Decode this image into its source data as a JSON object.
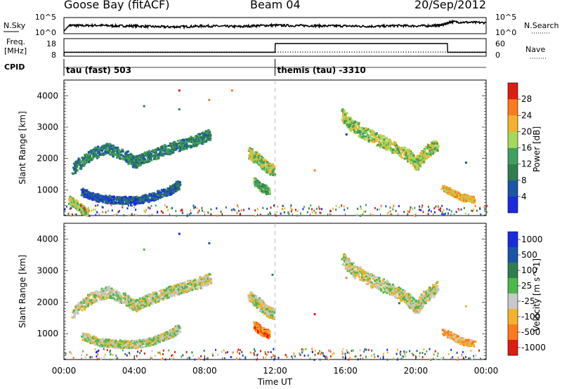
{
  "header": {
    "site": "Goose Bay (fitACF)",
    "beam": "Beam 04",
    "date": "20/Sep/2012"
  },
  "chart_data": [
    {
      "type": "line",
      "panel": "noise",
      "left_label": "N.Sky",
      "left_ticks": [
        "10^5",
        "10^0"
      ],
      "right_label": "N.Search",
      "right_ticks": [
        "10^5",
        "10^0"
      ],
      "series": [
        {
          "name": "N.Sky",
          "style": "solid",
          "x": [
            0,
            0.3,
            1,
            2,
            3,
            4,
            5,
            6,
            7,
            8,
            9,
            10,
            11,
            12,
            13,
            14,
            15,
            16,
            17,
            18,
            19,
            20,
            21,
            21.5,
            22,
            23,
            24
          ],
          "y": [
            0.8,
            2.6,
            2.5,
            2.6,
            2.4,
            2.4,
            2.2,
            2.1,
            2.2,
            2.4,
            2.3,
            2.2,
            2.5,
            2.6,
            2.5,
            2.5,
            2.4,
            2.4,
            2.3,
            2.3,
            2.5,
            2.4,
            2.5,
            2.7,
            3.7,
            3.5,
            3.4
          ]
        },
        {
          "name": "N.Search",
          "style": "dotted",
          "x": [],
          "y": []
        }
      ]
    },
    {
      "type": "line",
      "panel": "frequency",
      "left_label": "Freq. [MHz]",
      "left_ticks": [
        18,
        8
      ],
      "right_label": "Nave",
      "right_ticks": [
        60,
        0
      ],
      "series": [
        {
          "name": "Freq.",
          "style": "solid",
          "x": [
            0,
            0.01,
            12,
            12.01,
            21.8,
            21.81,
            24
          ],
          "y": [
            8,
            10.2,
            10.2,
            15.2,
            15.2,
            10.2,
            10.2
          ]
        },
        {
          "name": "Nave",
          "style": "dotted",
          "x": [
            0,
            24
          ],
          "y": [
            14,
            14
          ]
        }
      ]
    },
    {
      "type": "table",
      "panel": "cpid",
      "label": "CPID",
      "segments": [
        {
          "start": 0,
          "name": "tau (fast) 503"
        },
        {
          "start": 12,
          "name": "themis (tau) -3310"
        }
      ]
    },
    {
      "type": "heatmap",
      "panel": "power",
      "ylabel": "Slant Range [km]",
      "ylim": [
        180,
        4500
      ],
      "yticks": [
        1000,
        2000,
        3000,
        4000
      ],
      "colorbar_label": "Power [dB]",
      "colorbar_ticks": [
        4,
        8,
        12,
        16,
        20,
        24,
        28
      ],
      "colors": [
        "#1a2bde",
        "#1c55a8",
        "#2e7d4f",
        "#3fa05d",
        "#a6d85c",
        "#f4b32a",
        "#ff7a1a",
        "#e01b12"
      ],
      "bands": [
        {
          "x": [
            0.5,
            1.5,
            2.5,
            3.5,
            4.0,
            4.5,
            5.5,
            6.5,
            7.5,
            8.3
          ],
          "y": [
            1700,
            2150,
            2350,
            2100,
            1900,
            2050,
            2250,
            2450,
            2600,
            2800
          ],
          "w": 350,
          "level": 2
        },
        {
          "x": [
            1.0,
            2.0,
            3.0,
            4.0,
            5.0,
            6.0,
            6.5
          ],
          "y": [
            950,
            750,
            700,
            680,
            800,
            1000,
            1200
          ],
          "w": 250,
          "level": 1
        },
        {
          "x": [
            0.3,
            0.8,
            1.3
          ],
          "y": [
            700,
            500,
            300
          ],
          "w": 250,
          "level": 4
        },
        {
          "x": [
            10.5,
            11.0,
            11.5,
            11.9
          ],
          "y": [
            2200,
            2000,
            1750,
            1650
          ],
          "w": 350,
          "level": 4
        },
        {
          "x": [
            10.8,
            11.2,
            11.6
          ],
          "y": [
            1300,
            1100,
            1000
          ],
          "w": 250,
          "level": 3
        },
        {
          "x": [
            15.8,
            16.5,
            17.5,
            18.5,
            19.5,
            20.0,
            20.5,
            21.2
          ],
          "y": [
            3400,
            3000,
            2700,
            2450,
            2150,
            1850,
            2200,
            2500
          ],
          "w": 400,
          "level": 4
        },
        {
          "x": [
            21.5,
            22.5,
            23.3
          ],
          "y": [
            1100,
            800,
            700
          ],
          "w": 200,
          "level": 5
        }
      ],
      "scatter": [
        {
          "x": [
            4.5,
            6.5,
            6.5,
            8.2,
            9.5,
            14.2,
            16.0,
            22.8
          ],
          "y": [
            3700,
            4200,
            3600,
            3900,
            4200,
            1650,
            2800,
            1900
          ]
        }
      ]
    },
    {
      "type": "heatmap",
      "panel": "velocity",
      "xlabel": "Time UT",
      "xticks": [
        "00:00",
        "04:00",
        "08:00",
        "12:00",
        "16:00",
        "20:00",
        "00:00"
      ],
      "xlim": [
        0,
        24
      ],
      "ylabel": "Slant Range [km]",
      "ylim": [
        180,
        4500
      ],
      "yticks": [
        1000,
        2000,
        3000,
        4000
      ],
      "colorbar_label": "Velocity [m s^-1]",
      "colorbar_ticks": [
        "1000",
        "500",
        "100",
        "25",
        "-25",
        "-100",
        "-500",
        "-1000"
      ],
      "colors": [
        "#1a2bde",
        "#1c55a8",
        "#2e7d4f",
        "#4cb84a",
        "#c8c8c8",
        "#f4b32a",
        "#ff7a1a",
        "#e01b12"
      ],
      "bands": [
        {
          "x": [
            0.5,
            1.5,
            2.5,
            3.5,
            4.0,
            4.5,
            5.5,
            6.5,
            7.5,
            8.3
          ],
          "y": [
            1700,
            2150,
            2350,
            2100,
            1900,
            2050,
            2250,
            2450,
            2600,
            2800
          ],
          "w": 350,
          "level": 4
        },
        {
          "x": [
            1.0,
            2.0,
            3.0,
            4.0,
            5.0,
            6.0,
            6.5
          ],
          "y": [
            950,
            750,
            700,
            680,
            800,
            1000,
            1200
          ],
          "w": 250,
          "level": 4
        },
        {
          "x": [
            10.5,
            11.0,
            11.5,
            11.9
          ],
          "y": [
            2200,
            2000,
            1750,
            1650
          ],
          "w": 350,
          "level": 4
        },
        {
          "x": [
            10.8,
            11.2,
            11.6
          ],
          "y": [
            1300,
            1100,
            1000
          ],
          "w": 250,
          "level": 6
        },
        {
          "x": [
            15.8,
            16.5,
            17.5,
            18.5,
            19.5,
            20.0,
            20.5,
            21.2
          ],
          "y": [
            3400,
            3000,
            2700,
            2450,
            2150,
            1850,
            2200,
            2500
          ],
          "w": 400,
          "level": 4
        },
        {
          "x": [
            21.5,
            22.5,
            23.3
          ],
          "y": [
            1100,
            800,
            700
          ],
          "w": 200,
          "level": 5
        }
      ],
      "scatter": [
        {
          "x": [
            4.5,
            6.5,
            8.2,
            11.8,
            14.2,
            16.0,
            19.0,
            22.8
          ],
          "y": [
            3700,
            4200,
            3900,
            2900,
            1650,
            2800,
            2000,
            1900
          ]
        }
      ]
    }
  ]
}
